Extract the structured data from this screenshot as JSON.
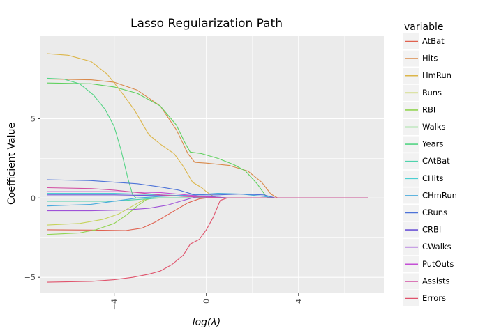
{
  "chart_data": {
    "type": "line",
    "title": "Lasso Regularization Path",
    "xlabel": "log(λ)",
    "ylabel": "Coefficient Value",
    "xlim": [
      -7.2,
      7.7
    ],
    "ylim": [
      -6.0,
      10.2
    ],
    "x_ticks": [
      -4,
      0,
      4
    ],
    "x_tick_labels": [
      "−4",
      "0",
      "4"
    ],
    "y_ticks": [
      -5,
      0,
      5
    ],
    "y_tick_labels": [
      "−5",
      "0",
      "5"
    ],
    "grid": true,
    "legend_title": "variable",
    "legend_position": "right",
    "series": [
      {
        "name": "AtBat",
        "color": "#e0614f",
        "points": [
          [
            -6.9,
            -2.0
          ],
          [
            -5,
            -2.02
          ],
          [
            -3.5,
            -2.05
          ],
          [
            -2.8,
            -1.9
          ],
          [
            -2.2,
            -1.5
          ],
          [
            -1.5,
            -0.9
          ],
          [
            -0.8,
            -0.3
          ],
          [
            -0.3,
            -0.05
          ],
          [
            0,
            0
          ],
          [
            7,
            0
          ]
        ]
      },
      {
        "name": "Hits",
        "color": "#d98a4b",
        "points": [
          [
            -6.9,
            7.5
          ],
          [
            -5,
            7.45
          ],
          [
            -4,
            7.3
          ],
          [
            -3,
            6.8
          ],
          [
            -2,
            5.8
          ],
          [
            -1.3,
            4.3
          ],
          [
            -0.8,
            2.8
          ],
          [
            -0.5,
            2.25
          ],
          [
            0,
            2.2
          ],
          [
            1,
            2.05
          ],
          [
            1.8,
            1.7
          ],
          [
            2.4,
            1.0
          ],
          [
            2.8,
            0.25
          ],
          [
            3.1,
            0
          ],
          [
            7,
            0
          ]
        ]
      },
      {
        "name": "HmRun",
        "color": "#dcb64a",
        "points": [
          [
            -6.9,
            9.1
          ],
          [
            -6,
            9.0
          ],
          [
            -5,
            8.6
          ],
          [
            -4.3,
            7.8
          ],
          [
            -3.7,
            6.7
          ],
          [
            -3.1,
            5.5
          ],
          [
            -2.5,
            4.0
          ],
          [
            -2,
            3.4
          ],
          [
            -1.4,
            2.8
          ],
          [
            -1.0,
            2.0
          ],
          [
            -0.6,
            1.0
          ],
          [
            -0.2,
            0.65
          ],
          [
            0,
            0.4
          ],
          [
            0.3,
            0.1
          ],
          [
            0.6,
            0
          ],
          [
            7,
            0
          ]
        ]
      },
      {
        "name": "Runs",
        "color": "#c6d35a",
        "points": [
          [
            -6.9,
            -1.7
          ],
          [
            -5.5,
            -1.6
          ],
          [
            -4.5,
            -1.35
          ],
          [
            -3.8,
            -1.0
          ],
          [
            -3.2,
            -0.5
          ],
          [
            -2.7,
            -0.1
          ],
          [
            -2.3,
            0
          ],
          [
            7,
            0
          ]
        ]
      },
      {
        "name": "RBI",
        "color": "#93d453",
        "points": [
          [
            -6.9,
            -2.3
          ],
          [
            -5.5,
            -2.2
          ],
          [
            -4.8,
            -2.0
          ],
          [
            -4,
            -1.6
          ],
          [
            -3.4,
            -1.0
          ],
          [
            -3.0,
            -0.5
          ],
          [
            -2.6,
            -0.1
          ],
          [
            -2.3,
            0
          ],
          [
            7,
            0
          ]
        ]
      },
      {
        "name": "Walks",
        "color": "#5fd15e",
        "points": [
          [
            -6.9,
            7.25
          ],
          [
            -5,
            7.2
          ],
          [
            -4,
            7.0
          ],
          [
            -3,
            6.6
          ],
          [
            -2,
            5.8
          ],
          [
            -1.3,
            4.6
          ],
          [
            -0.9,
            3.4
          ],
          [
            -0.7,
            2.9
          ],
          [
            -0.2,
            2.8
          ],
          [
            0.5,
            2.5
          ],
          [
            1.2,
            2.1
          ],
          [
            1.7,
            1.7
          ],
          [
            2.2,
            0.9
          ],
          [
            2.6,
            0.1
          ],
          [
            2.8,
            0
          ],
          [
            7,
            0
          ]
        ]
      },
      {
        "name": "Years",
        "color": "#55d485",
        "points": [
          [
            -6.9,
            7.55
          ],
          [
            -6.2,
            7.5
          ],
          [
            -5.5,
            7.2
          ],
          [
            -4.9,
            6.5
          ],
          [
            -4.4,
            5.6
          ],
          [
            -4.0,
            4.5
          ],
          [
            -3.7,
            3.0
          ],
          [
            -3.4,
            1.2
          ],
          [
            -3.2,
            0.2
          ],
          [
            -3.05,
            0
          ],
          [
            7,
            0
          ]
        ]
      },
      {
        "name": "CAtBat",
        "color": "#4fd3ad",
        "points": [
          [
            -6.9,
            -0.2
          ],
          [
            -4,
            -0.2
          ],
          [
            -3,
            -0.1
          ],
          [
            -2,
            0
          ],
          [
            7,
            0
          ]
        ]
      },
      {
        "name": "CHits",
        "color": "#4ccfd2",
        "points": [
          [
            -6.9,
            0.3
          ],
          [
            -4,
            0.3
          ],
          [
            -2,
            0.2
          ],
          [
            0,
            0.1
          ],
          [
            1,
            0
          ],
          [
            7,
            0
          ]
        ]
      },
      {
        "name": "CHmRun",
        "color": "#4aabdc",
        "points": [
          [
            -6.9,
            -0.5
          ],
          [
            -5,
            -0.4
          ],
          [
            -4,
            -0.2
          ],
          [
            -3,
            0
          ],
          [
            -2,
            0.1
          ],
          [
            -0.5,
            0.2
          ],
          [
            0.5,
            0.3
          ],
          [
            1.5,
            0.25
          ],
          [
            2.5,
            0.1
          ],
          [
            3,
            0
          ],
          [
            7,
            0
          ]
        ]
      },
      {
        "name": "CRuns",
        "color": "#4d73d8",
        "points": [
          [
            -6.9,
            1.15
          ],
          [
            -5,
            1.1
          ],
          [
            -4,
            1.0
          ],
          [
            -3,
            0.9
          ],
          [
            -2,
            0.7
          ],
          [
            -1.2,
            0.5
          ],
          [
            -0.5,
            0.2
          ],
          [
            0.5,
            0.2
          ],
          [
            1.5,
            0.25
          ],
          [
            2.5,
            0.2
          ],
          [
            3,
            0
          ],
          [
            7,
            0
          ]
        ]
      },
      {
        "name": "CRBI",
        "color": "#6c55d6",
        "points": [
          [
            -6.9,
            0.2
          ],
          [
            -4,
            0.2
          ],
          [
            -2,
            0.15
          ],
          [
            0,
            0.1
          ],
          [
            1,
            0
          ],
          [
            7,
            0
          ]
        ]
      },
      {
        "name": "CWalks",
        "color": "#9e52d8",
        "points": [
          [
            -6.9,
            -0.8
          ],
          [
            -5,
            -0.8
          ],
          [
            -3.5,
            -0.75
          ],
          [
            -2.5,
            -0.65
          ],
          [
            -1.7,
            -0.45
          ],
          [
            -1,
            -0.15
          ],
          [
            -0.5,
            0.05
          ],
          [
            0,
            0.1
          ],
          [
            0.7,
            0
          ],
          [
            7,
            0
          ]
        ]
      },
      {
        "name": "PutOuts",
        "color": "#c44fd5",
        "points": [
          [
            -6.9,
            0.4
          ],
          [
            -4,
            0.4
          ],
          [
            -2,
            0.35
          ],
          [
            -0.5,
            0.15
          ],
          [
            0.5,
            0
          ],
          [
            7,
            0
          ]
        ]
      },
      {
        "name": "Assists",
        "color": "#d250a3",
        "points": [
          [
            -6.9,
            0.65
          ],
          [
            -5,
            0.6
          ],
          [
            -4,
            0.5
          ],
          [
            -3,
            0.35
          ],
          [
            -2,
            0.2
          ],
          [
            -1,
            0.1
          ],
          [
            0,
            0.05
          ],
          [
            1,
            0
          ],
          [
            7,
            0
          ]
        ]
      },
      {
        "name": "Errors",
        "color": "#e0536c",
        "points": [
          [
            -6.9,
            -5.3
          ],
          [
            -5,
            -5.25
          ],
          [
            -4,
            -5.15
          ],
          [
            -3.2,
            -5.0
          ],
          [
            -2.5,
            -4.8
          ],
          [
            -2,
            -4.6
          ],
          [
            -1.5,
            -4.2
          ],
          [
            -1.0,
            -3.6
          ],
          [
            -0.7,
            -2.9
          ],
          [
            -0.3,
            -2.6
          ],
          [
            0,
            -2.0
          ],
          [
            0.3,
            -1.2
          ],
          [
            0.6,
            -0.15
          ],
          [
            0.9,
            0
          ],
          [
            7,
            0
          ]
        ]
      }
    ]
  }
}
